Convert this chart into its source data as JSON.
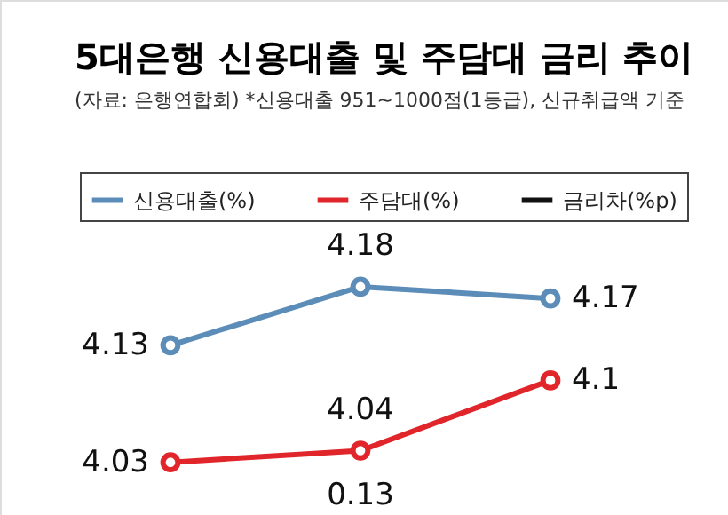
{
  "chart_data": {
    "type": "line",
    "title": "5대은행 신용대출 및 주담대 금리 추이",
    "subtitle": "(자료: 은행연합회)   *신용대출 951~1000점(1등급), 신규취급액 기준",
    "categories": [
      null,
      null,
      null
    ],
    "series": [
      {
        "name": "신용대출(%)",
        "color": "#5b8db8",
        "values": [
          4.13,
          4.18,
          4.17
        ]
      },
      {
        "name": "주담대(%)",
        "color": "#e0262b",
        "values": [
          4.03,
          4.04,
          4.1
        ]
      },
      {
        "name": "금리차(%p)",
        "color": "#111111",
        "values": [
          null,
          null,
          null
        ]
      }
    ],
    "annotations": [
      "0.13"
    ],
    "ylim": [
      3.985,
      4.425
    ],
    "grid": false,
    "legend": "top",
    "marker": "circle",
    "data_labels": true
  }
}
